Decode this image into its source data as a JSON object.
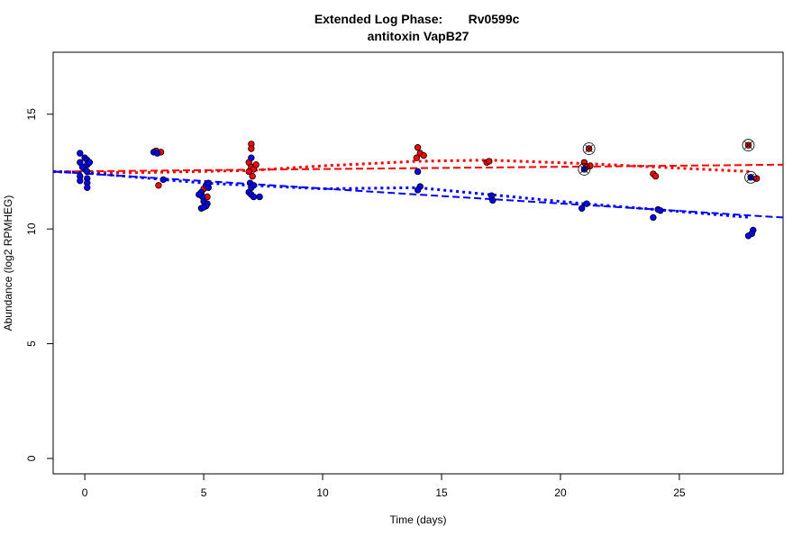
{
  "chart_data": {
    "type": "scatter",
    "title_line1_left": "Extended Log Phase:",
    "title_line1_right": "Rv0599c",
    "title_line2": "antitoxin VapB27",
    "xlabel": "Time  (days)",
    "ylabel": "Abundance  (log2 RPMHEG)",
    "xlim": [
      -1.33,
      29.36
    ],
    "ylim": [
      -0.67,
      17.7
    ],
    "xticks": [
      0,
      5,
      10,
      15,
      20,
      25
    ],
    "yticks": [
      0,
      5,
      10,
      15
    ],
    "grid": false,
    "colors": {
      "red": "#ff0000",
      "blue": "#0000ff"
    },
    "series": [
      {
        "color": "red",
        "points": [
          [
            0,
            12.6
          ],
          [
            3.0,
            13.4
          ],
          [
            3.2,
            13.35
          ],
          [
            3.1,
            11.9
          ],
          [
            4.85,
            11.5
          ],
          [
            5.15,
            11.4
          ],
          [
            5.0,
            11.75
          ],
          [
            7.0,
            13.7
          ],
          [
            7.0,
            13.5
          ],
          [
            6.9,
            12.9
          ],
          [
            7.0,
            12.7
          ],
          [
            7.1,
            12.6
          ],
          [
            6.9,
            12.5
          ],
          [
            7.05,
            12.3
          ],
          [
            7.2,
            12.8
          ],
          [
            14.0,
            13.55
          ],
          [
            14.1,
            13.3
          ],
          [
            14.25,
            13.2
          ],
          [
            13.95,
            13.1
          ],
          [
            16.9,
            12.9
          ],
          [
            17.0,
            12.95
          ],
          [
            21.0,
            12.9
          ],
          [
            21.1,
            12.7
          ],
          [
            21.25,
            12.75
          ],
          [
            23.9,
            12.4
          ],
          [
            24.0,
            12.3
          ],
          [
            28.25,
            12.2
          ]
        ],
        "outliers": [
          [
            21.2,
            13.5
          ],
          [
            27.9,
            13.65
          ]
        ],
        "fit_dashed": [
          [
            -1.33,
            12.5
          ],
          [
            29.36,
            12.8
          ]
        ],
        "fit_dotted": [
          [
            -1.33,
            12.5
          ],
          [
            2,
            12.45
          ],
          [
            7,
            12.55
          ],
          [
            10,
            12.75
          ],
          [
            14,
            12.95
          ],
          [
            17,
            13.0
          ],
          [
            21,
            12.85
          ],
          [
            24,
            12.7
          ],
          [
            28,
            12.5
          ]
        ]
      },
      {
        "color": "blue",
        "points": [
          [
            -0.2,
            13.3
          ],
          [
            0,
            13.1
          ],
          [
            0.1,
            13.0
          ],
          [
            -0.2,
            12.9
          ],
          [
            0.1,
            12.8
          ],
          [
            0,
            12.6
          ],
          [
            0.1,
            12.5
          ],
          [
            -0.2,
            12.3
          ],
          [
            -0.2,
            12.1
          ],
          [
            0.1,
            12.2
          ],
          [
            0.1,
            12.0
          ],
          [
            0.1,
            11.8
          ],
          [
            -0.1,
            12.7
          ],
          [
            0.2,
            12.9
          ],
          [
            2.9,
            13.35
          ],
          [
            3.05,
            13.3
          ],
          [
            3.3,
            12.15
          ],
          [
            4.9,
            11.6
          ],
          [
            5.1,
            11.9
          ],
          [
            5.2,
            11.8
          ],
          [
            4.95,
            11.4
          ],
          [
            5.0,
            11.2
          ],
          [
            5.15,
            11.1
          ],
          [
            5.1,
            11.0
          ],
          [
            4.9,
            10.9
          ],
          [
            5.0,
            10.95
          ],
          [
            4.8,
            11.5
          ],
          [
            5.2,
            12.0
          ],
          [
            7.0,
            13.1
          ],
          [
            6.95,
            12.0
          ],
          [
            6.9,
            11.6
          ],
          [
            7.0,
            11.5
          ],
          [
            7.1,
            11.4
          ],
          [
            7.35,
            11.4
          ],
          [
            7.0,
            11.8
          ],
          [
            7.1,
            11.9
          ],
          [
            14.0,
            12.5
          ],
          [
            14.1,
            11.85
          ],
          [
            14.0,
            11.7
          ],
          [
            17.1,
            11.45
          ],
          [
            17.15,
            11.25
          ],
          [
            21.1,
            11.1
          ],
          [
            20.9,
            10.9
          ],
          [
            24.1,
            10.85
          ],
          [
            24.2,
            10.8
          ],
          [
            23.9,
            10.5
          ],
          [
            28.1,
            9.95
          ],
          [
            28.05,
            9.8
          ],
          [
            27.9,
            9.7
          ]
        ],
        "outliers": [
          [
            21.0,
            12.6
          ],
          [
            28.0,
            12.25
          ]
        ],
        "fit_dashed": [
          [
            -1.33,
            12.5
          ],
          [
            29.36,
            10.5
          ]
        ],
        "fit_dotted": [
          [
            -1.33,
            12.5
          ],
          [
            0,
            12.45
          ],
          [
            5,
            12.0
          ],
          [
            10,
            11.75
          ],
          [
            14,
            11.8
          ],
          [
            17,
            11.5
          ],
          [
            21,
            11.1
          ],
          [
            24,
            10.85
          ],
          [
            28,
            10.5
          ]
        ]
      }
    ]
  }
}
